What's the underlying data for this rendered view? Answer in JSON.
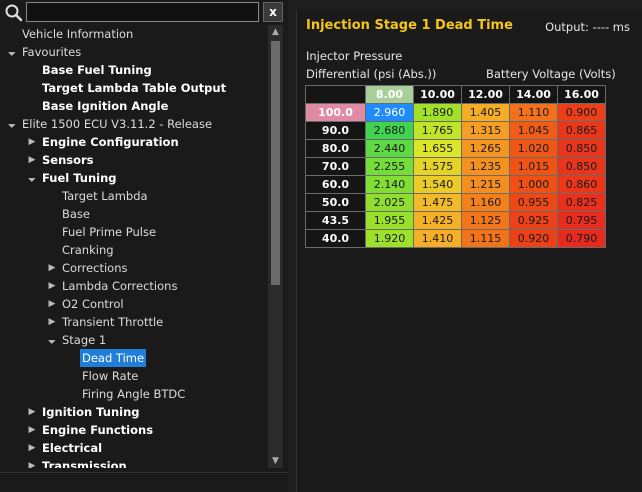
{
  "search": {
    "placeholder": "",
    "value": "",
    "clear_label": "x"
  },
  "tree": [
    {
      "label": "Vehicle Information",
      "level": 0,
      "arrow": "",
      "bold": false
    },
    {
      "label": "Favourites",
      "level": 0,
      "arrow": "down",
      "bold": false
    },
    {
      "label": "Base Fuel Tuning",
      "level": 1,
      "arrow": "",
      "bold": true
    },
    {
      "label": "Target Lambda Table Output",
      "level": 1,
      "arrow": "",
      "bold": true
    },
    {
      "label": "Base Ignition Angle",
      "level": 1,
      "arrow": "",
      "bold": true
    },
    {
      "label": "Elite 1500 ECU V3.11.2 - Release",
      "level": 0,
      "arrow": "down",
      "bold": false
    },
    {
      "label": "Engine Configuration",
      "level": 1,
      "arrow": "right",
      "bold": true
    },
    {
      "label": "Sensors",
      "level": 1,
      "arrow": "right",
      "bold": true
    },
    {
      "label": "Fuel Tuning",
      "level": 1,
      "arrow": "down",
      "bold": true
    },
    {
      "label": "Target Lambda",
      "level": 2,
      "arrow": "",
      "bold": false
    },
    {
      "label": "Base",
      "level": 2,
      "arrow": "",
      "bold": false
    },
    {
      "label": "Fuel Prime Pulse",
      "level": 2,
      "arrow": "",
      "bold": false
    },
    {
      "label": "Cranking",
      "level": 2,
      "arrow": "",
      "bold": false
    },
    {
      "label": "Corrections",
      "level": 2,
      "arrow": "right",
      "bold": false
    },
    {
      "label": "Lambda Corrections",
      "level": 2,
      "arrow": "right",
      "bold": false
    },
    {
      "label": "O2 Control",
      "level": 2,
      "arrow": "right",
      "bold": false
    },
    {
      "label": "Transient Throttle",
      "level": 2,
      "arrow": "right",
      "bold": false
    },
    {
      "label": "Stage 1",
      "level": 2,
      "arrow": "down",
      "bold": false
    },
    {
      "label": "Dead Time",
      "level": 3,
      "arrow": "",
      "bold": false,
      "selected": true
    },
    {
      "label": "Flow Rate",
      "level": 3,
      "arrow": "",
      "bold": false
    },
    {
      "label": "Firing Angle BTDC",
      "level": 3,
      "arrow": "",
      "bold": false
    },
    {
      "label": "Ignition Tuning",
      "level": 1,
      "arrow": "right",
      "bold": true
    },
    {
      "label": "Engine Functions",
      "level": 1,
      "arrow": "right",
      "bold": true
    },
    {
      "label": "Electrical",
      "level": 1,
      "arrow": "right",
      "bold": true
    },
    {
      "label": "Transmission",
      "level": 1,
      "arrow": "right",
      "bold": true
    }
  ],
  "panel": {
    "title": "Injection Stage 1 Dead Time",
    "output_label": "Output: ---- ms",
    "y_axis_line1": "Injector Pressure",
    "y_axis_line2": "Differential (psi (Abs.))",
    "x_axis": "Battery Voltage  (Volts)",
    "columns": [
      "8.00",
      "10.00",
      "12.00",
      "14.00",
      "16.00"
    ],
    "highlight_column": 0,
    "highlight_row": 0,
    "selected_cell": [
      0,
      0
    ],
    "rows": [
      {
        "header": "100.0",
        "values": [
          "2.960",
          "1.890",
          "1.405",
          "1.110",
          "0.900"
        ]
      },
      {
        "header": "90.0",
        "values": [
          "2.680",
          "1.765",
          "1.315",
          "1.045",
          "0.865"
        ]
      },
      {
        "header": "80.0",
        "values": [
          "2.440",
          "1.655",
          "1.265",
          "1.020",
          "0.850"
        ]
      },
      {
        "header": "70.0",
        "values": [
          "2.255",
          "1.575",
          "1.235",
          "1.015",
          "0.850"
        ]
      },
      {
        "header": "60.0",
        "values": [
          "2.140",
          "1.540",
          "1.215",
          "1.000",
          "0.860"
        ]
      },
      {
        "header": "50.0",
        "values": [
          "2.025",
          "1.475",
          "1.160",
          "0.955",
          "0.825"
        ]
      },
      {
        "header": "43.5",
        "values": [
          "1.955",
          "1.425",
          "1.125",
          "0.925",
          "0.795"
        ]
      },
      {
        "header": "40.0",
        "values": [
          "1.920",
          "1.410",
          "1.115",
          "0.920",
          "0.790"
        ]
      }
    ],
    "colors": {
      "title": "#f5c518",
      "selected": "#1e8cff"
    }
  }
}
